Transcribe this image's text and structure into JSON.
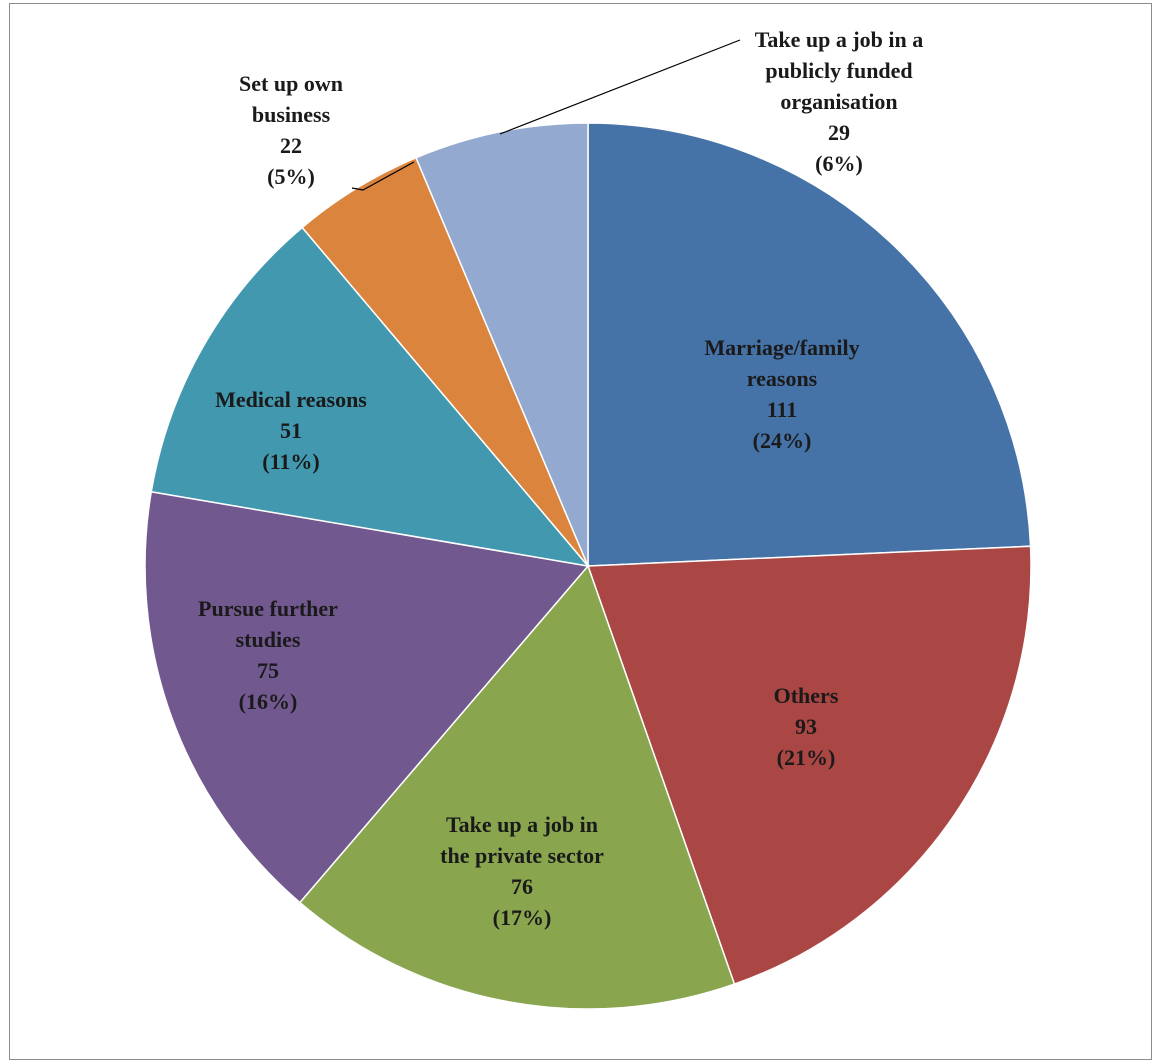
{
  "chart_data": {
    "type": "pie",
    "title": "",
    "start_angle_deg": 0,
    "direction": "clockwise",
    "slices": [
      {
        "label": "Marriage/family reasons",
        "value": 111,
        "percent": "24%",
        "color": "#4572a7"
      },
      {
        "label": "Others",
        "value": 93,
        "percent": "21%",
        "color": "#aa4643"
      },
      {
        "label": "Take up a job in the private sector",
        "value": 76,
        "percent": "17%",
        "color": "#89a54e"
      },
      {
        "label": "Pursue further studies",
        "value": 75,
        "percent": "16%",
        "color": "#71588f"
      },
      {
        "label": "Medical reasons",
        "value": 51,
        "percent": "11%",
        "color": "#4198af"
      },
      {
        "label": "Set up own business",
        "value": 22,
        "percent": "5%",
        "color": "#db843d"
      },
      {
        "label": "Take up a job in a publicly funded organisation",
        "value": 29,
        "percent": "6%",
        "color": "#93a9cf"
      }
    ],
    "labels": [
      {
        "lines": [
          "Marriage/family",
          "reasons",
          "111",
          "(24%)"
        ]
      },
      {
        "lines": [
          "Others",
          "93",
          "(21%)"
        ]
      },
      {
        "lines": [
          "Take up a job in",
          "the private sector",
          "76",
          "(17%)"
        ]
      },
      {
        "lines": [
          "Pursue further",
          "studies",
          "75",
          "(16%)"
        ]
      },
      {
        "lines": [
          "Medical reasons",
          "51",
          "(11%)"
        ]
      },
      {
        "lines": [
          "Set up own",
          "business",
          "22",
          "(5%)"
        ]
      },
      {
        "lines": [
          "Take up a job in a",
          "publicly funded",
          "organisation",
          "29",
          "(6%)"
        ]
      }
    ]
  }
}
